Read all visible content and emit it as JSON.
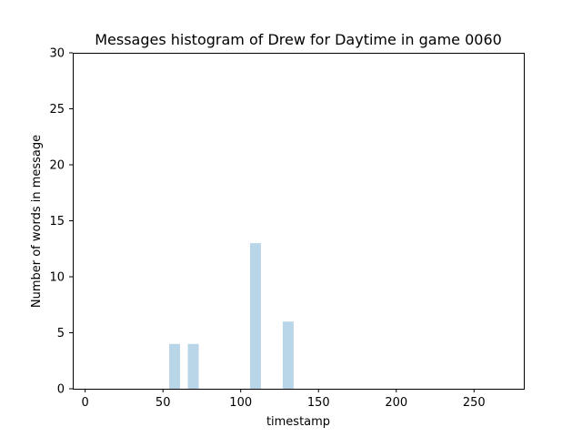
{
  "chart_data": {
    "type": "bar",
    "title": "Messages histogram of Drew for Daytime in game 0060",
    "xlabel": "timestamp",
    "ylabel": "Number of words in message",
    "xlim": [
      -8,
      282
    ],
    "ylim": [
      0,
      30
    ],
    "x_ticks": [
      0,
      50,
      100,
      150,
      200,
      250
    ],
    "y_ticks": [
      0,
      5,
      10,
      15,
      20,
      25,
      30
    ],
    "bar_width": 7,
    "bar_color": "#b9d5e8",
    "grid": false,
    "legend": "none",
    "points": [
      {
        "x": 57.5,
        "y": 4
      },
      {
        "x": 69.5,
        "y": 4
      },
      {
        "x": 109.5,
        "y": 13
      },
      {
        "x": 130.5,
        "y": 6
      }
    ]
  }
}
